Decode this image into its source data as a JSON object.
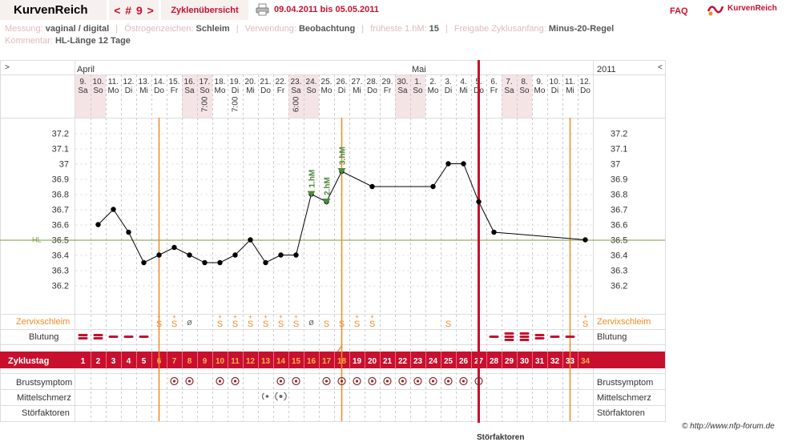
{
  "header": {
    "app_title": "KurvenReich",
    "cycle_nav": "< # 9 >",
    "overview_tab": "Zyklenübersicht",
    "date_range": "09.04.2011 bis 05.05.2011",
    "faq": "FAQ",
    "logo_text": "KurvenReich"
  },
  "info": {
    "messung_label": "Messung:",
    "messung_value": "vaginal / digital",
    "oestrogen_label": "Östrogenzeichen:",
    "oestrogen_value": "Schleim",
    "verwendung_label": "Verwendung:",
    "verwendung_value": "Beobachtung",
    "frueheste_label": "früheste 1.hM:",
    "frueheste_value": "15",
    "freigabe_label": "Freigabe Zyklusanfang:",
    "freigabe_value": "Minus-20-Regel",
    "kommentar_label": "Kommentar:",
    "kommentar_value": "HL-Länge 12 Tage"
  },
  "colors": {
    "accent": "#c8102e",
    "weekend_shade": "#f4e4e6",
    "orange": "#f08a24",
    "coverline": "#7a9a4a",
    "hm_marker": "#4a8a3a",
    "symptom": "#8b2a2a"
  },
  "labels": {
    "left_arrow": ">",
    "right_arrow": "<",
    "year_right": "2011",
    "month_april": "April",
    "month_mai": "Mai",
    "hl_label": "HL",
    "row_zervix": "Zervixschleim",
    "row_blutung": "Blutung",
    "row_zyklustag": "Zyklustag",
    "row_brust": "Brustsymptom",
    "row_mittel": "Mittelschmerz",
    "row_stoer": "Störfaktoren",
    "copyright": "© http://www.nfp-forum.de",
    "footer_cut": "Störfaktoren"
  },
  "chart_data": {
    "type": "line",
    "title": "",
    "ylabel": "",
    "ylim": [
      36.1,
      37.3
    ],
    "yticks": [
      36.2,
      36.3,
      36.4,
      36.5,
      36.6,
      36.7,
      36.8,
      36.9,
      37,
      37.1,
      37.2
    ],
    "coverline": 36.5,
    "grid": true,
    "days": [
      {
        "day": "9.",
        "wd": "Sa",
        "weekend": true
      },
      {
        "day": "10.",
        "wd": "So",
        "weekend": true
      },
      {
        "day": "11.",
        "wd": "Mo"
      },
      {
        "day": "12.",
        "wd": "Di"
      },
      {
        "day": "13.",
        "wd": "Mi"
      },
      {
        "day": "14.",
        "wd": "Do"
      },
      {
        "day": "15.",
        "wd": "Fr"
      },
      {
        "day": "16.",
        "wd": "Sa",
        "weekend": true
      },
      {
        "day": "17.",
        "wd": "So",
        "weekend": true,
        "time": "7:00"
      },
      {
        "day": "18.",
        "wd": "Mo"
      },
      {
        "day": "19.",
        "wd": "Di",
        "time": "7:00"
      },
      {
        "day": "20.",
        "wd": "Mi"
      },
      {
        "day": "21.",
        "wd": "Do"
      },
      {
        "day": "22.",
        "wd": "Fr"
      },
      {
        "day": "23.",
        "wd": "Sa",
        "weekend": true,
        "time": "6:00"
      },
      {
        "day": "24.",
        "wd": "So",
        "weekend": true
      },
      {
        "day": "25.",
        "wd": "Mo"
      },
      {
        "day": "26.",
        "wd": "Di"
      },
      {
        "day": "27.",
        "wd": "Mi"
      },
      {
        "day": "28.",
        "wd": "Do"
      },
      {
        "day": "29.",
        "wd": "Fr"
      },
      {
        "day": "30.",
        "wd": "Sa",
        "weekend": true
      },
      {
        "day": "1.",
        "wd": "So",
        "weekend": true
      },
      {
        "day": "2.",
        "wd": "Mo"
      },
      {
        "day": "3.",
        "wd": "Di"
      },
      {
        "day": "4.",
        "wd": "Mi"
      },
      {
        "day": "5.",
        "wd": "Do"
      },
      {
        "day": "6.",
        "wd": "Fr"
      },
      {
        "day": "7.",
        "wd": "Sa",
        "weekend": true
      },
      {
        "day": "8.",
        "wd": "So",
        "weekend": true
      },
      {
        "day": "9.",
        "wd": "Mo"
      },
      {
        "day": "10.",
        "wd": "Di"
      },
      {
        "day": "11.",
        "wd": "Mi"
      },
      {
        "day": "12.",
        "wd": "Do"
      }
    ],
    "cycle_days": [
      "1",
      "2",
      "3",
      "4",
      "5",
      "6",
      "7",
      "8",
      "9",
      "10",
      "11",
      "12",
      "13",
      "14",
      "15",
      "16",
      "17",
      "18",
      "19",
      "20",
      "21",
      "22",
      "23",
      "24",
      "25",
      "26",
      "27",
      "28",
      "29",
      "30",
      "31",
      "32",
      "33",
      "34"
    ],
    "temperatures": [
      null,
      36.6,
      36.7,
      36.55,
      36.35,
      36.4,
      36.45,
      36.4,
      36.35,
      36.35,
      36.4,
      36.5,
      36.35,
      36.4,
      36.4,
      36.8,
      36.75,
      36.95,
      null,
      36.85,
      null,
      null,
      null,
      36.85,
      37.0,
      37.0,
      36.75,
      36.55,
      null,
      null,
      null,
      null,
      null,
      36.5
    ],
    "hm_markers": [
      {
        "index": 15,
        "label": "1.hM"
      },
      {
        "index": 16,
        "label": "2.hM"
      },
      {
        "index": 17,
        "label": "3.hM"
      }
    ],
    "zervix": [
      "",
      "",
      "",
      "",
      "",
      "S+",
      "S+",
      "ø",
      "",
      "S+",
      "S+",
      "S+",
      "S+",
      "S+",
      "S+",
      "ø",
      "S",
      "S",
      "S+",
      "S+",
      "",
      "",
      "",
      "",
      "S",
      "",
      "",
      "",
      "",
      "",
      "",
      "",
      "",
      "S+"
    ],
    "blutung": [
      2,
      2,
      1,
      1,
      1,
      0,
      0,
      0,
      0,
      0,
      0,
      0,
      0,
      0,
      0,
      0,
      0,
      0,
      0,
      0,
      0,
      0,
      0,
      0,
      0,
      0,
      0,
      1,
      3,
      3,
      2,
      1,
      1,
      0
    ],
    "brust": [
      "",
      "",
      "",
      "",
      "",
      "",
      "o",
      "o",
      "",
      "o",
      "o",
      "",
      "",
      "o",
      "o",
      "",
      "o",
      "o",
      "o",
      "o",
      "o",
      "o",
      "o",
      "o",
      "o",
      "o",
      "o",
      "",
      "",
      "",
      "",
      "",
      "",
      ""
    ],
    "mittelschmerz": [
      "",
      "",
      "",
      "",
      "",
      "",
      "",
      "",
      "",
      "",
      "",
      "",
      "l",
      "b",
      "",
      "",
      "",
      "",
      "",
      "",
      "",
      "",
      "",
      "",
      "",
      "",
      "",
      "",
      "",
      "",
      "",
      "",
      "",
      ""
    ],
    "orange_lines": [
      5.5,
      17.5,
      32.5
    ],
    "cycle_end_line": 26.5
  }
}
